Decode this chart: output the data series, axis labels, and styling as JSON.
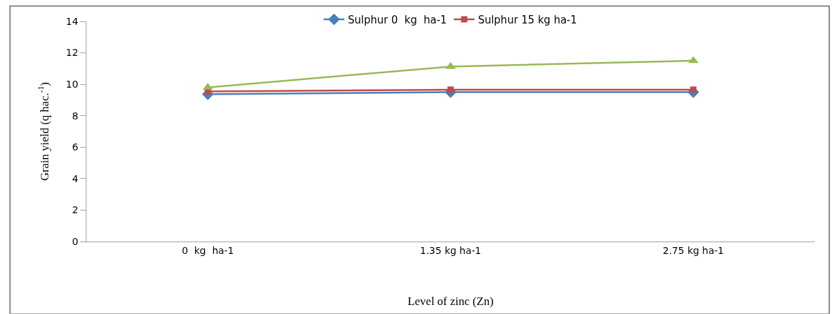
{
  "chart_data": {
    "type": "line",
    "xlabel": "Level of zinc (Zn)",
    "ylabel": "Grain yield (q hac.$^{-1}$)",
    "categories": [
      "0  kg  ha-1",
      "1.35 kg ha-1",
      "2.75 kg ha-1"
    ],
    "ylim": [
      0,
      14
    ],
    "yticks": [
      0,
      2,
      4,
      6,
      8,
      10,
      12,
      14
    ],
    "legend": "top",
    "series": [
      {
        "name": "Sulphur 0  kg  ha-1",
        "color": "#4a7ebb",
        "marker": "diamond",
        "values": [
          9.37,
          9.5,
          9.5
        ]
      },
      {
        "name": "Sulphur 15 kg ha-1",
        "color": "#be4b48",
        "marker": "square",
        "values": [
          9.54,
          9.66,
          9.66
        ]
      },
      {
        "color": "#98b954",
        "marker": "triangle",
        "values": [
          9.8,
          11.13,
          11.5
        ]
      }
    ]
  }
}
